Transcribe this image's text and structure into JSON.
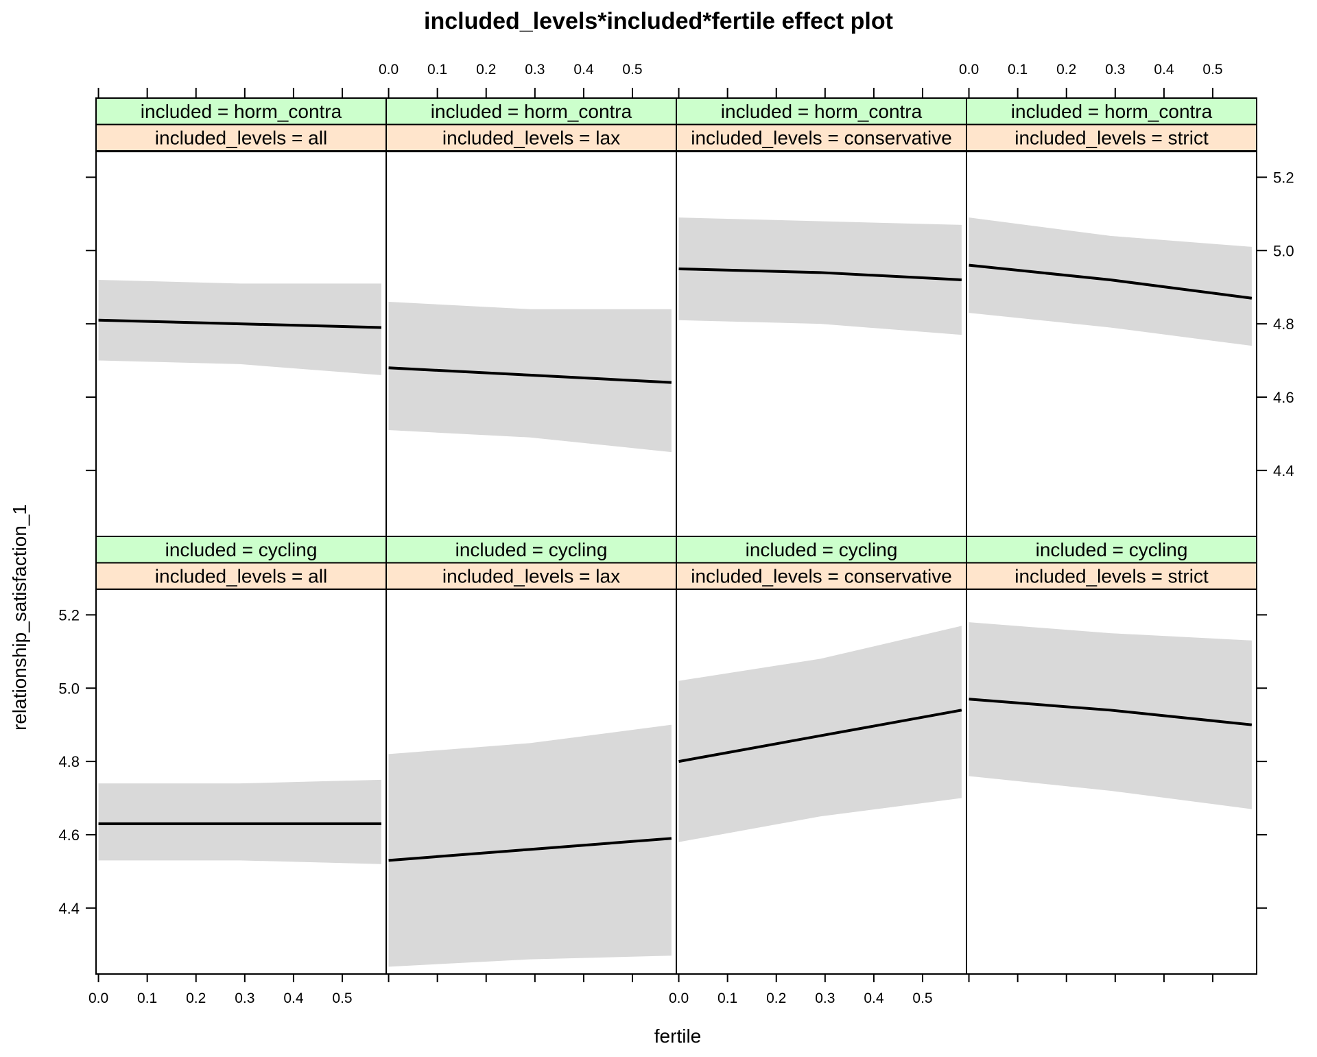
{
  "chart_data": {
    "type": "line",
    "title": "included_levels*included*fertile effect plot",
    "xlabel": "fertile",
    "ylabel": "relationship_satisfaction_1",
    "xlim": [
      -0.005,
      0.59
    ],
    "ylim": [
      4.22,
      5.27
    ],
    "xticks": [
      0.0,
      0.1,
      0.2,
      0.3,
      0.4,
      0.5
    ],
    "xtick_labels": [
      "0.0",
      "0.1",
      "0.2",
      "0.3",
      "0.4",
      "0.5"
    ],
    "yticks": [
      4.4,
      4.6,
      4.8,
      5.0,
      5.2
    ],
    "ytick_labels": [
      "4.4",
      "4.6",
      "4.8",
      "5.0",
      "5.2"
    ],
    "grid": false,
    "band_color": "#d9d9d9",
    "line_color": "#000000",
    "strip_colors": {
      "included": "#ccffcc",
      "included_levels": "#ffe5cc"
    },
    "panels": [
      {
        "row": 0,
        "col": 0,
        "included": "included = horm_contra",
        "included_levels": "included_levels = all",
        "x": [
          0.0,
          0.29,
          0.58
        ],
        "y": [
          4.81,
          4.8,
          4.79
        ],
        "lower": [
          4.7,
          4.69,
          4.66
        ],
        "upper": [
          4.92,
          4.91,
          4.91
        ]
      },
      {
        "row": 0,
        "col": 1,
        "included": "included = horm_contra",
        "included_levels": "included_levels = lax",
        "x": [
          0.0,
          0.29,
          0.58
        ],
        "y": [
          4.68,
          4.66,
          4.64
        ],
        "lower": [
          4.51,
          4.49,
          4.45
        ],
        "upper": [
          4.86,
          4.84,
          4.84
        ]
      },
      {
        "row": 0,
        "col": 2,
        "included": "included = horm_contra",
        "included_levels": "included_levels = conservative",
        "x": [
          0.0,
          0.29,
          0.58
        ],
        "y": [
          4.95,
          4.94,
          4.92
        ],
        "lower": [
          4.81,
          4.8,
          4.77
        ],
        "upper": [
          5.09,
          5.08,
          5.07
        ]
      },
      {
        "row": 0,
        "col": 3,
        "included": "included = horm_contra",
        "included_levels": "included_levels = strict",
        "x": [
          0.0,
          0.29,
          0.58
        ],
        "y": [
          4.96,
          4.92,
          4.87
        ],
        "lower": [
          4.83,
          4.79,
          4.74
        ],
        "upper": [
          5.09,
          5.04,
          5.01
        ]
      },
      {
        "row": 1,
        "col": 0,
        "included": "included = cycling",
        "included_levels": "included_levels = all",
        "x": [
          0.0,
          0.29,
          0.58
        ],
        "y": [
          4.63,
          4.63,
          4.63
        ],
        "lower": [
          4.53,
          4.53,
          4.52
        ],
        "upper": [
          4.74,
          4.74,
          4.75
        ]
      },
      {
        "row": 1,
        "col": 1,
        "included": "included = cycling",
        "included_levels": "included_levels = lax",
        "x": [
          0.0,
          0.29,
          0.58
        ],
        "y": [
          4.53,
          4.56,
          4.59
        ],
        "lower": [
          4.24,
          4.26,
          4.27
        ],
        "upper": [
          4.82,
          4.85,
          4.9
        ]
      },
      {
        "row": 1,
        "col": 2,
        "included": "included = cycling",
        "included_levels": "included_levels = conservative",
        "x": [
          0.0,
          0.29,
          0.58
        ],
        "y": [
          4.8,
          4.87,
          4.94
        ],
        "lower": [
          4.58,
          4.65,
          4.7
        ],
        "upper": [
          5.02,
          5.08,
          5.17
        ]
      },
      {
        "row": 1,
        "col": 3,
        "included": "included = cycling",
        "included_levels": "included_levels = strict",
        "x": [
          0.0,
          0.29,
          0.58
        ],
        "y": [
          4.97,
          4.94,
          4.9
        ],
        "lower": [
          4.76,
          4.72,
          4.67
        ],
        "upper": [
          5.18,
          5.15,
          5.13
        ]
      }
    ]
  }
}
